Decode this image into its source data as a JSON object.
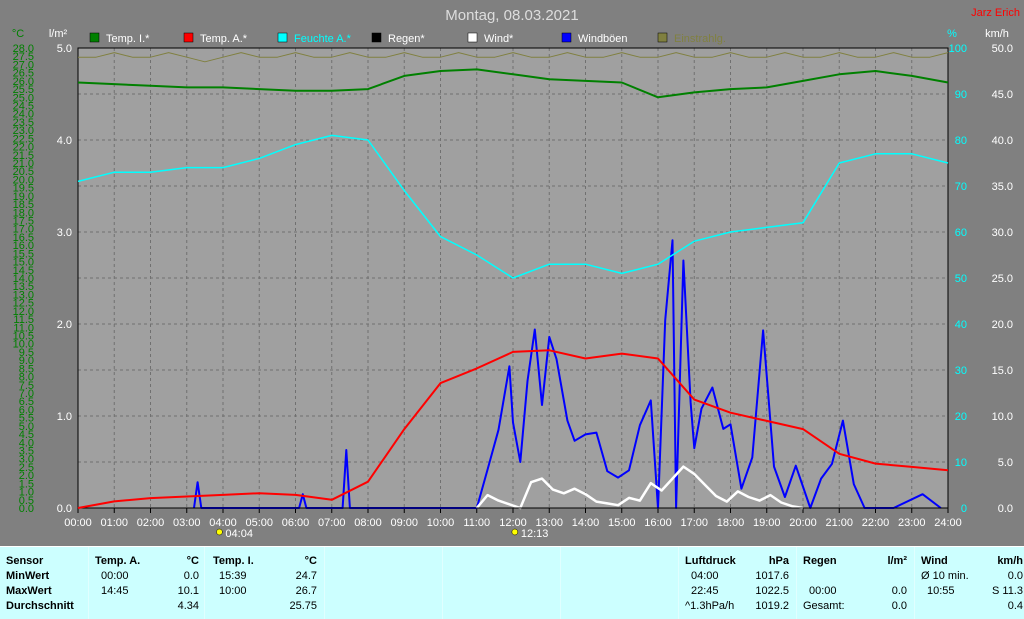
{
  "title": "Montag, 08.03.2021",
  "author": "Jarz Erich",
  "legend": [
    {
      "label": "Temp. I.*",
      "color": "#008000"
    },
    {
      "label": "Temp. A.*",
      "color": "#ff0000"
    },
    {
      "label": "Feuchte A.*",
      "color": "#00ffff"
    },
    {
      "label": "Regen*",
      "color": "#000000"
    },
    {
      "label": "Wind*",
      "color": "#ffffff"
    },
    {
      "label": "Windböen",
      "color": "#0000ff"
    },
    {
      "label": "Einstrahlg.",
      "color": "#808040"
    }
  ],
  "axis_units": {
    "temp": "°C",
    "rain": "l/m²",
    "hum": "%",
    "wind": "km/h"
  },
  "sun_markers": {
    "sunrise": "04:04",
    "noon": "12:13"
  },
  "chart_data": {
    "type": "line",
    "x_label_ticks": [
      "00:00",
      "01:00",
      "02:00",
      "03:00",
      "04:00",
      "05:00",
      "06:00",
      "07:00",
      "08:00",
      "09:00",
      "10:00",
      "11:00",
      "12:00",
      "13:00",
      "14:00",
      "15:00",
      "16:00",
      "17:00",
      "18:00",
      "19:00",
      "20:00",
      "21:00",
      "22:00",
      "23:00",
      "24:00"
    ],
    "xlim": [
      0,
      24
    ],
    "temp_axis": {
      "ylim": [
        0,
        28
      ],
      "step": 0.5,
      "color": "#008000"
    },
    "rain_axis": {
      "ylim": [
        0,
        5
      ],
      "ticks": [
        "0.0",
        "1.0",
        "2.0",
        "3.0",
        "4.0",
        "5.0"
      ]
    },
    "hum_axis": {
      "ylim": [
        0,
        100
      ],
      "ticks": [
        "0",
        "10",
        "20",
        "30",
        "40",
        "50",
        "60",
        "70",
        "80",
        "90",
        "100"
      ],
      "color": "#00ffff"
    },
    "wind_axis": {
      "ylim": [
        0,
        50
      ],
      "ticks": [
        "0.0",
        "5.0",
        "10.0",
        "15.0",
        "20.0",
        "25.0",
        "30.0",
        "35.0",
        "40.0",
        "45.0",
        "50.0"
      ]
    },
    "series": [
      {
        "name": "Temp. I.*",
        "axis": "temp",
        "color": "#008000",
        "x": [
          0,
          1,
          2,
          3,
          4,
          5,
          6,
          7,
          8,
          9,
          10,
          11,
          12,
          13,
          14,
          15,
          16,
          17,
          18,
          19,
          20,
          21,
          22,
          23,
          24
        ],
        "y": [
          25.9,
          25.8,
          25.7,
          25.6,
          25.6,
          25.5,
          25.4,
          25.4,
          25.5,
          26.3,
          26.6,
          26.7,
          26.4,
          26.1,
          26.0,
          25.9,
          25.0,
          25.3,
          25.5,
          25.6,
          26.0,
          26.4,
          26.6,
          26.3,
          25.9
        ]
      },
      {
        "name": "Temp. A.*",
        "axis": "temp",
        "color": "#ff0000",
        "x": [
          0,
          1,
          2,
          3,
          4,
          5,
          6,
          7,
          8,
          9,
          10,
          11,
          12,
          13,
          14,
          15,
          16,
          17,
          18,
          19,
          20,
          21,
          22,
          23,
          24
        ],
        "y": [
          0.0,
          0.4,
          0.6,
          0.7,
          0.8,
          0.9,
          0.8,
          0.5,
          1.6,
          4.8,
          7.6,
          8.5,
          9.5,
          9.6,
          9.1,
          9.4,
          9.1,
          6.6,
          5.8,
          5.3,
          4.8,
          3.3,
          2.7,
          2.5,
          2.3
        ]
      },
      {
        "name": "Feuchte A.*",
        "axis": "hum",
        "color": "#00ffff",
        "x": [
          0,
          1,
          2,
          3,
          4,
          5,
          6,
          7,
          8,
          9,
          10,
          11,
          12,
          13,
          14,
          15,
          16,
          17,
          18,
          19,
          20,
          21,
          22,
          23,
          24
        ],
        "y": [
          71,
          73,
          73,
          74,
          74,
          76,
          79,
          81,
          80,
          69,
          59,
          55,
          50,
          53,
          53,
          51,
          53,
          58,
          60,
          61,
          62,
          75,
          77,
          77,
          75
        ]
      },
      {
        "name": "Windböen",
        "axis": "wind",
        "color": "#0000ff",
        "x": [
          3.2,
          3.3,
          3.4,
          6.1,
          6.2,
          6.3,
          7.3,
          7.4,
          7.5,
          11.0,
          11.3,
          11.6,
          11.9,
          12.0,
          12.2,
          12.4,
          12.6,
          12.8,
          13.0,
          13.2,
          13.5,
          13.7,
          14.0,
          14.3,
          14.6,
          14.9,
          15.2,
          15.5,
          15.8,
          16.0,
          16.2,
          16.4,
          16.5,
          16.7,
          16.9,
          17.0,
          17.2,
          17.5,
          17.8,
          18.0,
          18.3,
          18.6,
          18.9,
          19.2,
          19.5,
          19.8,
          20.2,
          20.5,
          20.8,
          21.1,
          21.4,
          21.7,
          22.0,
          22.5,
          23.3,
          23.8
        ],
        "y": [
          0,
          2.8,
          0,
          0,
          1.5,
          0,
          0,
          6.3,
          0,
          0,
          4.2,
          8.5,
          15.4,
          9.3,
          5.0,
          13.8,
          19.4,
          11.2,
          18.6,
          16.2,
          9.5,
          7.3,
          8.0,
          8.2,
          4.0,
          3.3,
          4.1,
          9.0,
          11.7,
          0,
          20.4,
          29.1,
          0,
          26.9,
          11.5,
          6.5,
          10.8,
          13.1,
          8.6,
          9.1,
          2.1,
          5.5,
          19.3,
          4.5,
          1.2,
          4.6,
          0,
          3.2,
          4.8,
          9.5,
          2.6,
          0,
          0,
          0,
          1.5,
          0
        ]
      },
      {
        "name": "Wind*",
        "axis": "wind",
        "color": "#ffffff",
        "x": [
          11.0,
          11.3,
          11.6,
          11.9,
          12.2,
          12.5,
          12.8,
          13.1,
          13.4,
          13.7,
          14.0,
          14.3,
          14.6,
          14.9,
          15.2,
          15.5,
          15.8,
          16.1,
          16.4,
          16.7,
          17.0,
          17.3,
          17.6,
          17.9,
          18.2,
          18.5,
          18.8,
          19.1,
          19.4,
          19.7,
          20.0
        ],
        "y": [
          0,
          1.4,
          0.8,
          0.4,
          0,
          2.8,
          3.2,
          2.0,
          1.6,
          2.1,
          1.5,
          0.7,
          0.5,
          0.3,
          1.1,
          0.8,
          2.7,
          1.9,
          3.2,
          4.5,
          3.7,
          2.5,
          1.3,
          0.7,
          1.8,
          1.2,
          0.8,
          1.4,
          0.6,
          0.2,
          0
        ]
      },
      {
        "name": "Regen*",
        "axis": "rain",
        "color": "#000000",
        "x": [
          0,
          24
        ],
        "y": [
          0,
          0
        ]
      },
      {
        "name": "Einstrahlg.",
        "axis": "hum",
        "color": "#808040",
        "x": [
          0,
          0.5,
          1,
          1.5,
          2,
          2.5,
          3,
          3.5,
          4,
          4.5,
          5,
          5.5,
          6,
          6.5,
          7,
          7.5,
          8,
          8.5,
          9,
          9.5,
          10,
          10.5,
          11,
          11.5,
          12,
          12.5,
          13,
          13.5,
          14,
          14.5,
          15,
          15.5,
          16,
          16.5,
          17,
          17.5,
          18,
          18.5,
          19,
          19.5,
          20,
          20.5,
          21,
          21.5,
          22,
          22.5,
          23,
          23.5,
          24
        ],
        "y": [
          98,
          98,
          99,
          98,
          98,
          99,
          98,
          97,
          98,
          99,
          98,
          98,
          99,
          98,
          98,
          99,
          98,
          98,
          99,
          98,
          98,
          99,
          98,
          98,
          99,
          98,
          98,
          99,
          98,
          98,
          99,
          98,
          98,
          99,
          98,
          98,
          99,
          98,
          98,
          99,
          98,
          98,
          99,
          98,
          98,
          99,
          98,
          98,
          99
        ]
      }
    ]
  },
  "footer": {
    "sensor": {
      "header": "Sensor",
      "rows": [
        "MinWert",
        "MaxWert",
        "Durchschnitt"
      ]
    },
    "temp_a": {
      "header": "Temp. A.",
      "unit": "°C",
      "rows": [
        [
          "00:00",
          "0.0"
        ],
        [
          "14:45",
          "10.1"
        ],
        [
          "",
          "4.34"
        ]
      ]
    },
    "temp_i": {
      "header": "Temp. I.",
      "unit": "°C",
      "rows": [
        [
          "15:39",
          "24.7"
        ],
        [
          "10:00",
          "26.7"
        ],
        [
          "",
          "25.75"
        ]
      ]
    },
    "luftdruck": {
      "header": "Luftdruck",
      "unit": "hPa",
      "rows": [
        [
          "04:00",
          "1017.6"
        ],
        [
          "22:45",
          "1022.5"
        ],
        [
          "^1.3hPa/h",
          "1019.2"
        ]
      ]
    },
    "regen": {
      "header": "Regen",
      "unit": "l/m²",
      "rows": [
        [
          "",
          ""
        ],
        [
          "00:00",
          "0.0"
        ],
        [
          "Gesamt:",
          "0.0"
        ]
      ]
    },
    "wind": {
      "header": "Wind",
      "unit": "km/h",
      "rows": [
        [
          "Ø 10 min.",
          "0.0"
        ],
        [
          "10:55",
          "S 11.3"
        ],
        [
          "",
          "0.4"
        ]
      ]
    }
  }
}
